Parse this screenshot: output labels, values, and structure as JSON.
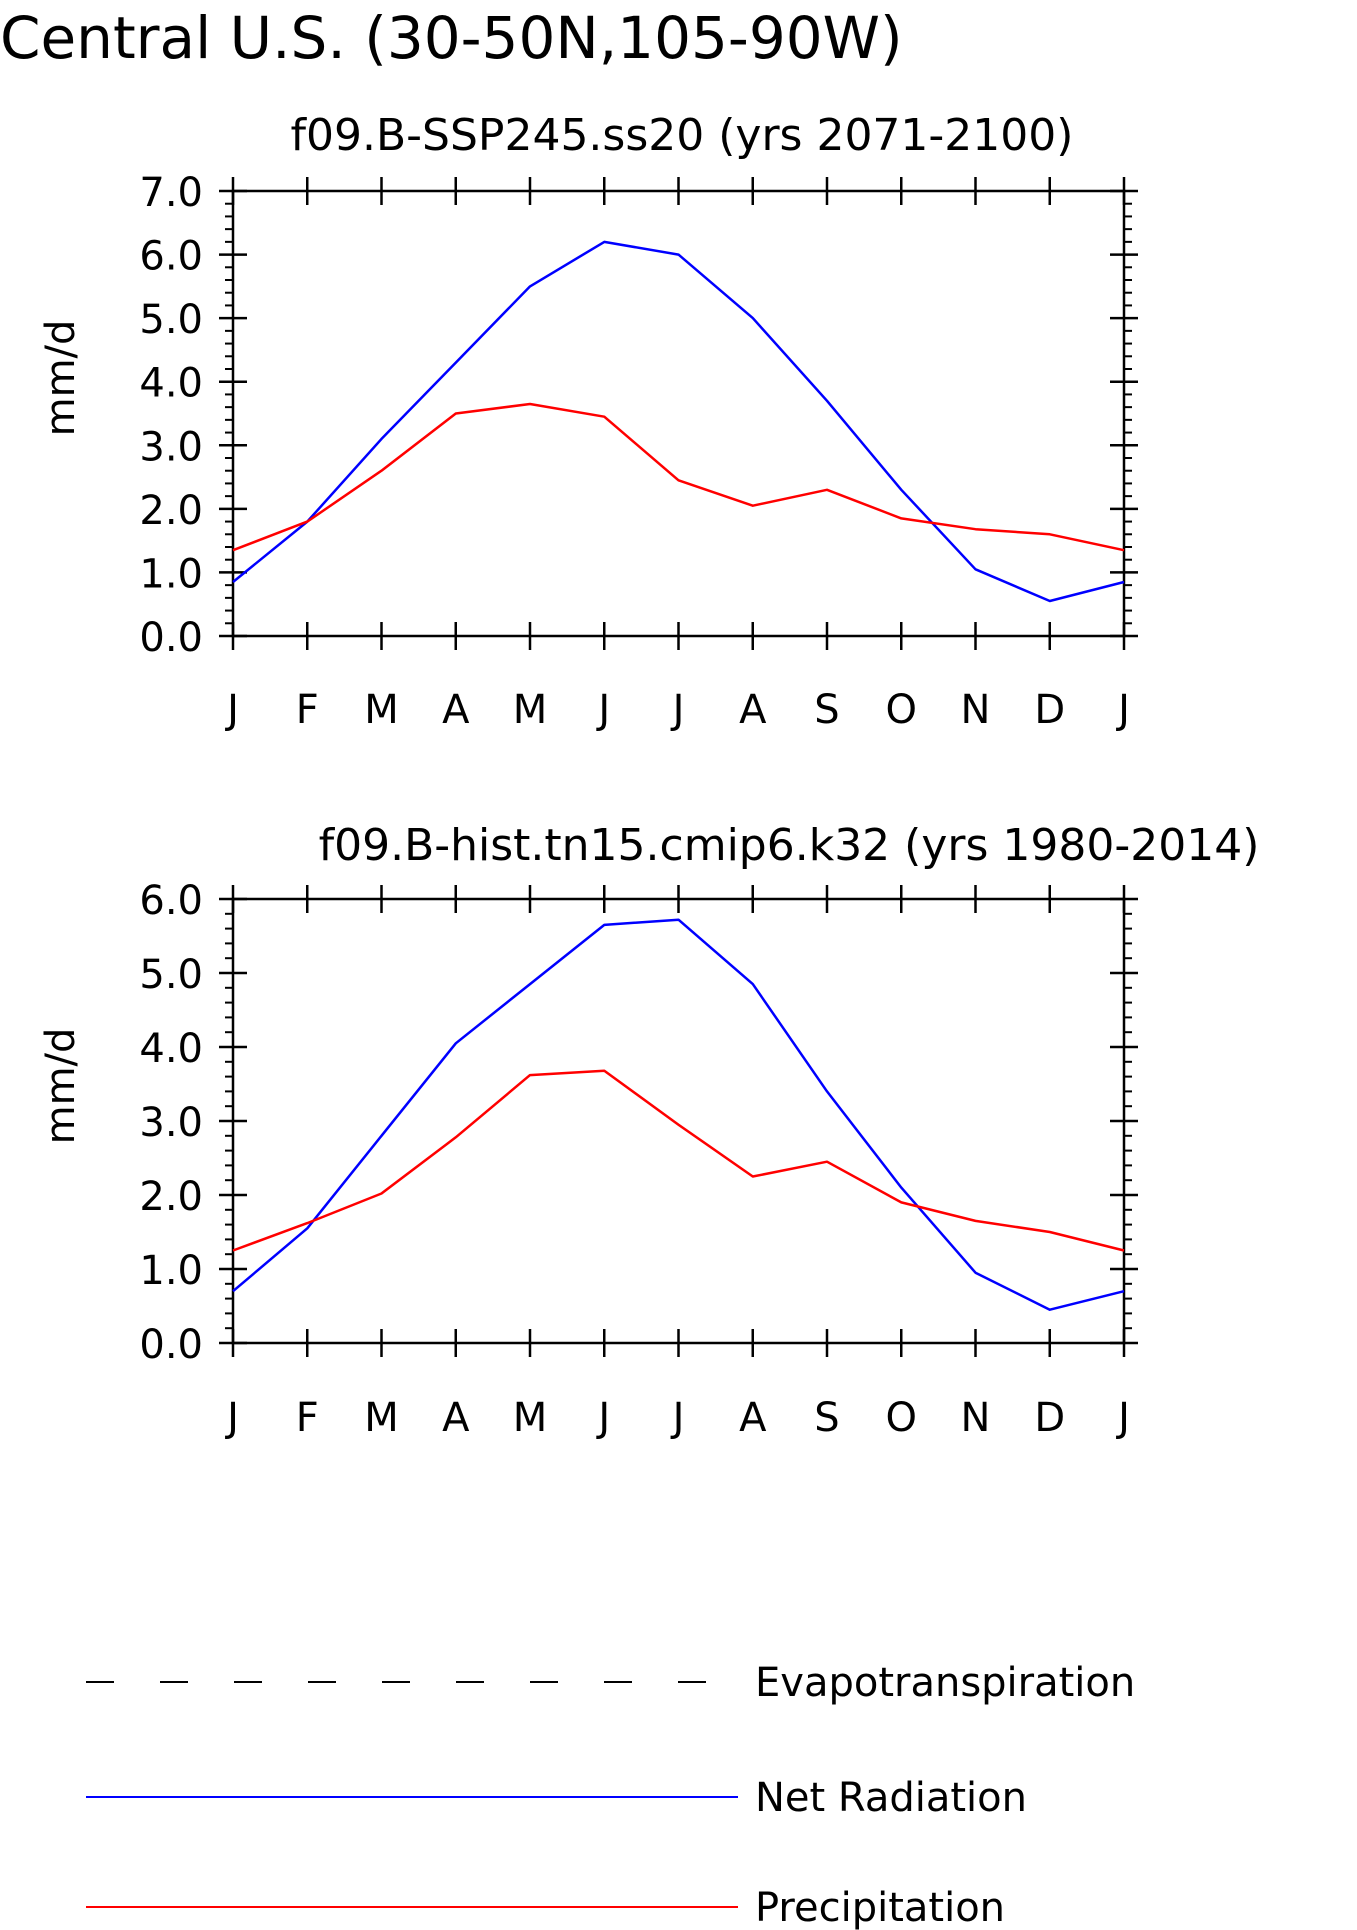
{
  "figure_title": "Central U.S. (30-50N,105-90W)",
  "chart_data": [
    {
      "type": "line",
      "title": "f09.B-SSP245.ss20 (yrs 2071-2100)",
      "ylabel": "mm/d",
      "xlabel": "",
      "categories": [
        "J",
        "F",
        "M",
        "A",
        "M",
        "J",
        "J",
        "A",
        "S",
        "O",
        "N",
        "D",
        "J"
      ],
      "yticks": [
        "0.0",
        "1.0",
        "2.0",
        "3.0",
        "4.0",
        "5.0",
        "6.0",
        "7.0"
      ],
      "ylim": [
        0,
        7
      ],
      "grid": false,
      "series": [
        {
          "name": "Net Radiation",
          "color": "#0000ff",
          "values": [
            0.85,
            1.8,
            3.1,
            4.3,
            5.5,
            6.2,
            6.0,
            5.0,
            3.7,
            2.3,
            1.05,
            0.55,
            0.85
          ]
        },
        {
          "name": "Precipitation",
          "color": "#ff0000",
          "values": [
            1.35,
            1.8,
            2.6,
            3.5,
            3.65,
            3.45,
            2.45,
            2.05,
            2.3,
            1.85,
            1.68,
            1.6,
            1.35
          ]
        }
      ]
    },
    {
      "type": "line",
      "title": "f09.B-hist.tn15.cmip6.k32 (yrs 1980-2014)",
      "ylabel": "mm/d",
      "xlabel": "",
      "categories": [
        "J",
        "F",
        "M",
        "A",
        "M",
        "J",
        "J",
        "A",
        "S",
        "O",
        "N",
        "D",
        "J"
      ],
      "yticks": [
        "0.0",
        "1.0",
        "2.0",
        "3.0",
        "4.0",
        "5.0",
        "6.0"
      ],
      "ylim": [
        0,
        6
      ],
      "grid": false,
      "series": [
        {
          "name": "Net Radiation",
          "color": "#0000ff",
          "values": [
            0.7,
            1.55,
            2.8,
            4.05,
            4.85,
            5.65,
            5.72,
            4.85,
            3.4,
            2.1,
            0.95,
            0.45,
            0.7
          ]
        },
        {
          "name": "Precipitation",
          "color": "#ff0000",
          "values": [
            1.25,
            1.62,
            2.02,
            2.78,
            3.62,
            3.68,
            2.95,
            2.25,
            2.45,
            1.9,
            1.65,
            1.5,
            1.25
          ]
        }
      ]
    }
  ],
  "legend": {
    "placement": "bottom",
    "items": [
      {
        "label": "Evapotranspiration",
        "color": "#000000",
        "style": "dashed"
      },
      {
        "label": "Net Radiation",
        "color": "#0000ff",
        "style": "solid"
      },
      {
        "label": "Precipitation",
        "color": "#ff0000",
        "style": "solid"
      }
    ]
  }
}
